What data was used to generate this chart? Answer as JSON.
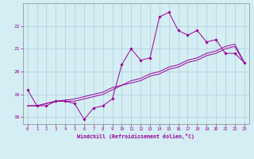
{
  "xlabel": "Windchill (Refroidissement éolien,°C)",
  "x_values": [
    0,
    1,
    2,
    3,
    4,
    5,
    6,
    7,
    8,
    9,
    10,
    11,
    12,
    13,
    14,
    15,
    16,
    17,
    18,
    19,
    20,
    21,
    22,
    23
  ],
  "line1_y": [
    19.2,
    18.5,
    18.5,
    18.7,
    18.7,
    18.6,
    17.9,
    18.4,
    18.5,
    18.8,
    20.3,
    21.0,
    20.5,
    20.6,
    22.4,
    22.6,
    21.8,
    21.6,
    21.8,
    21.3,
    21.4,
    20.8,
    20.8,
    20.4
  ],
  "line2_y": [
    18.5,
    18.5,
    18.6,
    18.7,
    18.7,
    18.7,
    18.8,
    18.9,
    19.0,
    19.2,
    19.4,
    19.5,
    19.6,
    19.8,
    19.9,
    20.1,
    20.2,
    20.4,
    20.5,
    20.7,
    20.8,
    21.0,
    21.1,
    20.4
  ],
  "line3_y": [
    18.5,
    18.5,
    18.6,
    18.7,
    18.75,
    18.8,
    18.9,
    19.0,
    19.1,
    19.3,
    19.4,
    19.6,
    19.7,
    19.9,
    20.0,
    20.2,
    20.3,
    20.5,
    20.6,
    20.8,
    20.9,
    21.1,
    21.2,
    20.4
  ],
  "line_color": "#990099",
  "bg_color": "#d4eef4",
  "grid_color": "#b0ccd8",
  "ylim": [
    17.7,
    23.0
  ],
  "yticks": [
    18,
    19,
    20,
    21,
    22
  ]
}
